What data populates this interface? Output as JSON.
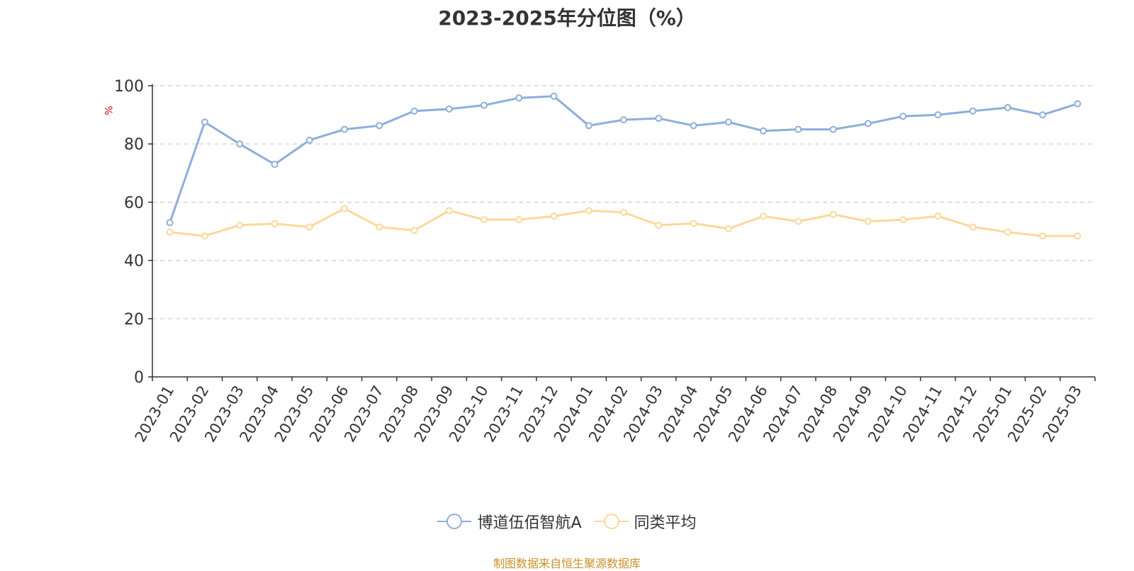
{
  "chart_data": {
    "type": "line",
    "title": "2023-2025年分位图（%）",
    "ylabel": "%",
    "ylim": [
      0,
      100
    ],
    "yticks": [
      0,
      20,
      40,
      60,
      80,
      100
    ],
    "grid": true,
    "legend_position": "bottom",
    "categories": [
      "2023-01",
      "2023-02",
      "2023-03",
      "2023-04",
      "2023-05",
      "2023-06",
      "2023-07",
      "2023-08",
      "2023-09",
      "2023-10",
      "2023-11",
      "2023-12",
      "2024-01",
      "2024-02",
      "2024-03",
      "2024-04",
      "2024-05",
      "2024-06",
      "2024-07",
      "2024-08",
      "2024-09",
      "2024-10",
      "2024-11",
      "2024-12",
      "2025-01",
      "2025-02",
      "2025-03"
    ],
    "series": [
      {
        "name": "博道伍佰智航A",
        "color": "#8eaedb",
        "values": [
          53,
          87.5,
          80,
          73,
          81.3,
          85,
          86.3,
          91.3,
          92,
          93.3,
          95.8,
          96.4,
          86.3,
          88.3,
          88.8,
          86.3,
          87.5,
          84.5,
          85,
          85,
          87,
          89.5,
          90,
          91.3,
          92.5,
          90,
          93.8
        ]
      },
      {
        "name": "同类平均",
        "color": "#fbd89a",
        "values": [
          49.7,
          48.4,
          52.1,
          52.6,
          51.5,
          57.8,
          51.5,
          50.3,
          57.1,
          54,
          54,
          55.2,
          57.1,
          56.5,
          52.1,
          52.7,
          50.9,
          55.2,
          53.4,
          55.8,
          53.4,
          54,
          55.2,
          51.5,
          49.7,
          48.4,
          48.4
        ]
      }
    ]
  },
  "footer": {
    "source": "制图数据来自恒生聚源数据库"
  }
}
